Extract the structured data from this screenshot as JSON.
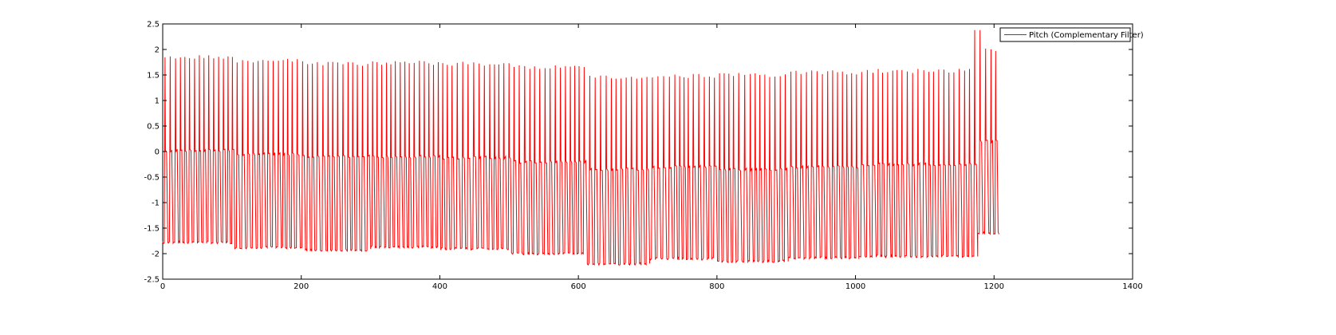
{
  "chart_data": {
    "type": "line",
    "title": "",
    "xlabel": "",
    "ylabel": "",
    "xlim": [
      0,
      1400
    ],
    "ylim": [
      -2.5,
      2.5
    ],
    "xticks": [
      0,
      200,
      400,
      600,
      800,
      1000,
      1200,
      1400
    ],
    "yticks": [
      -2.5,
      -2,
      -1.5,
      -1,
      -0.5,
      0,
      0.5,
      1,
      1.5,
      2,
      2.5
    ],
    "xtick_labels": [
      "0",
      "200",
      "400",
      "600",
      "800",
      "1000",
      "1200",
      "1400"
    ],
    "ytick_labels": [
      "-2.5",
      "-2",
      "-1.5",
      "-1",
      "-0.5",
      "0",
      "0.5",
      "1",
      "1.5",
      "2",
      "2.5"
    ],
    "grid": false,
    "legend_position": "top-right",
    "series": [
      {
        "name": "Pitch (Complementary Filter)",
        "color": "#ff0000",
        "x_range": [
          0,
          1207
        ],
        "segments": [
          {
            "x_start": 0,
            "x_end": 100,
            "high": 1.85,
            "mid": 0.02,
            "low": -1.78
          },
          {
            "x_start": 100,
            "x_end": 200,
            "high": 1.78,
            "mid": -0.05,
            "low": -1.88
          },
          {
            "x_start": 200,
            "x_end": 300,
            "high": 1.72,
            "mid": -0.1,
            "low": -1.93
          },
          {
            "x_start": 300,
            "x_end": 400,
            "high": 1.74,
            "mid": -0.1,
            "low": -1.87
          },
          {
            "x_start": 400,
            "x_end": 500,
            "high": 1.72,
            "mid": -0.12,
            "low": -1.9
          },
          {
            "x_start": 500,
            "x_end": 610,
            "high": 1.65,
            "mid": -0.2,
            "low": -2.0
          },
          {
            "x_start": 610,
            "x_end": 700,
            "high": 1.45,
            "mid": -0.35,
            "low": -2.2
          },
          {
            "x_start": 700,
            "x_end": 800,
            "high": 1.48,
            "mid": -0.3,
            "low": -2.1
          },
          {
            "x_start": 800,
            "x_end": 900,
            "high": 1.5,
            "mid": -0.35,
            "low": -2.15
          },
          {
            "x_start": 900,
            "x_end": 1000,
            "high": 1.55,
            "mid": -0.3,
            "low": -2.08
          },
          {
            "x_start": 1000,
            "x_end": 1100,
            "high": 1.58,
            "mid": -0.25,
            "low": -2.05
          },
          {
            "x_start": 1100,
            "x_end": 1170,
            "high": 1.58,
            "mid": -0.25,
            "low": -2.05
          },
          {
            "x_start": 1170,
            "x_end": 1207,
            "high": 2.0,
            "mid": 0.2,
            "low": -1.6
          }
        ],
        "peak": {
          "x": 1176,
          "y": 2.38
        },
        "end_value": -1.62
      }
    ]
  }
}
